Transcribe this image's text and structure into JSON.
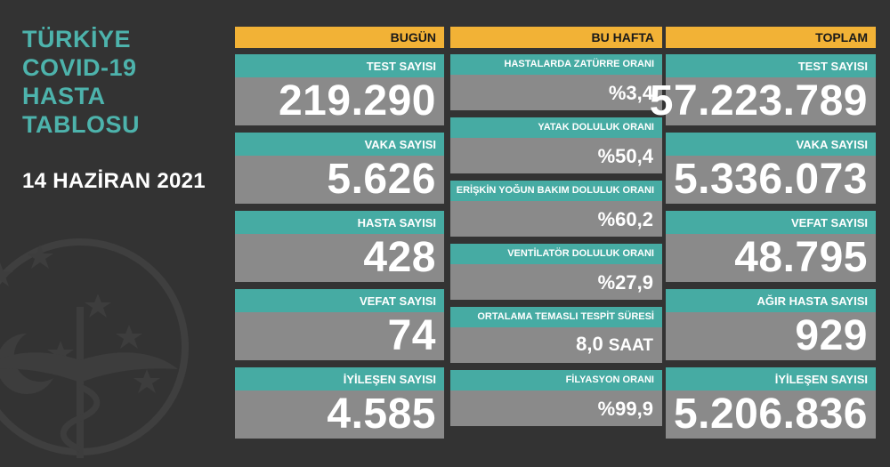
{
  "title_lines": [
    "TÜRKİYE",
    "COVID-19",
    "HASTA",
    "TABLOSU"
  ],
  "date": "14 HAZİRAN 2021",
  "colors": {
    "background": "#333333",
    "header_gold": "#f2b236",
    "label_teal": "#46aba3",
    "value_grey": "#8a8a8a",
    "title_teal": "#4db3ac"
  },
  "columns": {
    "today": {
      "header": "BUGÜN",
      "cards": [
        {
          "label": "TEST SAYISI",
          "value": "219.290"
        },
        {
          "label": "VAKA SAYISI",
          "value": "5.626"
        },
        {
          "label": "HASTA SAYISI",
          "value": "428"
        },
        {
          "label": "VEFAT SAYISI",
          "value": "74"
        },
        {
          "label": "İYİLEŞEN SAYISI",
          "value": "4.585"
        }
      ]
    },
    "this_week": {
      "header": "BU HAFTA",
      "cards": [
        {
          "label": "HASTALARDA ZATÜRRE ORANI",
          "value": "%3,4"
        },
        {
          "label": "YATAK DOLULUK ORANI",
          "value": "%50,4"
        },
        {
          "label": "ERİŞKİN YOĞUN BAKIM DOLULUK ORANI",
          "value": "%60,2"
        },
        {
          "label": "VENTİLATÖR DOLULUK ORANI",
          "value": "%27,9"
        },
        {
          "label": "ORTALAMA TEMASLI TESPİT SÜRESİ",
          "value": "8,0",
          "unit": "SAAT"
        },
        {
          "label": "FİLYASYON ORANI",
          "value": "%99,9"
        }
      ]
    },
    "total": {
      "header": "TOPLAM",
      "cards": [
        {
          "label": "TEST SAYISI",
          "value": "57.223.789"
        },
        {
          "label": "VAKA SAYISI",
          "value": "5.336.073"
        },
        {
          "label": "VEFAT SAYISI",
          "value": "48.795"
        },
        {
          "label": "AĞIR HASTA SAYISI",
          "value": "929"
        },
        {
          "label": "İYİLEŞEN SAYISI",
          "value": "5.206.836"
        }
      ]
    }
  }
}
